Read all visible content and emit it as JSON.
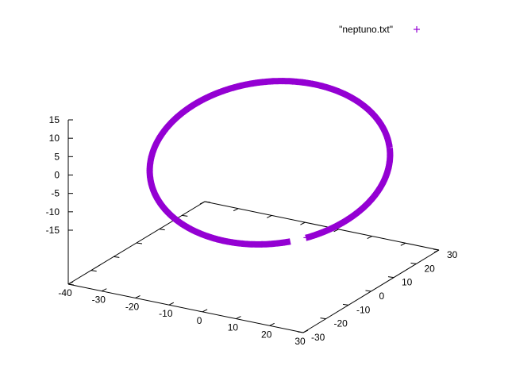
{
  "chart_data": {
    "type": "scatter",
    "dimensions": 3,
    "legend": {
      "entries": [
        "\"neptuno.txt\""
      ],
      "placement": "top-right",
      "marker": "plus"
    },
    "colors": {
      "series": "#9400d3",
      "axes": "#000000"
    },
    "axes": {
      "x": {
        "ticks": [
          "-40",
          "-30",
          "-20",
          "-10",
          "0",
          "10",
          "20",
          "30"
        ],
        "range": [
          -40,
          30
        ]
      },
      "y": {
        "ticks": [
          "-30",
          "-20",
          "-10",
          "0",
          "10",
          "20",
          "30"
        ],
        "range": [
          -30,
          30
        ]
      },
      "z": {
        "ticks": [
          "15",
          "10",
          "5",
          "0",
          "-5",
          "-10",
          "-15"
        ],
        "range": [
          -15,
          15
        ]
      }
    },
    "grid": false,
    "series": [
      {
        "name": "\"neptuno.txt\"",
        "description_points_xyz": [
          [
            -12,
            15,
            0
          ],
          [
            -20,
            5,
            0
          ],
          [
            -28,
            -5,
            0
          ],
          [
            -30,
            -15,
            0
          ],
          [
            -22,
            -25,
            0
          ],
          [
            -5,
            -28,
            0
          ],
          [
            15,
            -20,
            0
          ],
          [
            25,
            -5,
            0
          ],
          [
            26,
            10,
            0
          ],
          [
            20,
            22,
            0
          ],
          [
            10,
            28,
            0
          ]
        ]
      }
    ]
  }
}
